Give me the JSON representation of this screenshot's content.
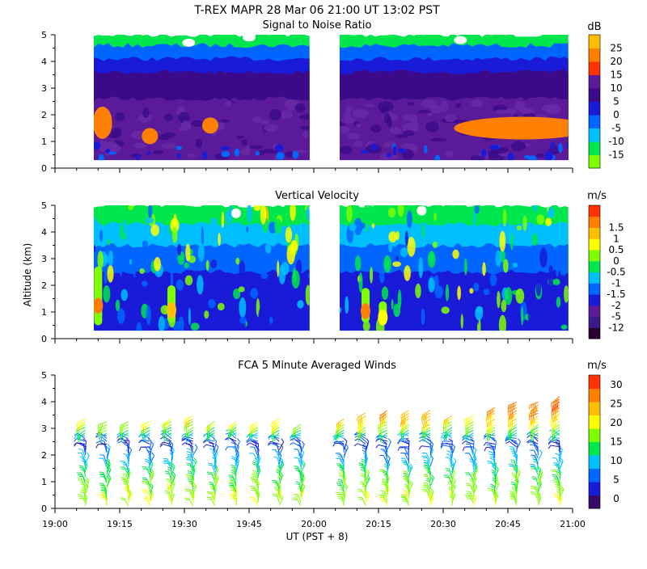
{
  "header": {
    "title": "T-REX   MAPR 28 Mar 06   21:00 UT   13:02   PST"
  },
  "axes": {
    "ylabel": "Altitude (km)",
    "xlabel": "UT  (PST + 8)",
    "y_ticks": [
      "0",
      "1",
      "2",
      "3",
      "4",
      "5"
    ],
    "x_ticks": [
      "19:00",
      "19:15",
      "19:30",
      "19:45",
      "20:00",
      "20:15",
      "20:30",
      "20:45",
      "21:00"
    ]
  },
  "panels": [
    {
      "title": "Signal to Noise Ratio",
      "unit": "dB",
      "colorbar": {
        "colors": [
          "#7fff00",
          "#00e64d",
          "#00bfff",
          "#0066ff",
          "#1a1ad9",
          "#3a0a8a",
          "#5a1a9a",
          "#ff3300",
          "#ff7f00",
          "#ffbf00"
        ],
        "labels": [
          "-15",
          "-10",
          "-5",
          "0",
          "5",
          "10",
          "15",
          "20",
          "25"
        ]
      }
    },
    {
      "title": "Vertical Velocity",
      "unit": "m/s",
      "colorbar": {
        "colors": [
          "#2a0030",
          "#3b1a8a",
          "#5a1a9a",
          "#1a1ad9",
          "#0066ff",
          "#00bfff",
          "#00e64d",
          "#7fff00",
          "#ffff00",
          "#ffbf00",
          "#ff7f00",
          "#ff3300"
        ],
        "labels": [
          "-12",
          "-5",
          "-2",
          "-1.5",
          "-1",
          "-0.5",
          "0",
          "0.5",
          "1",
          "1.5"
        ]
      }
    },
    {
      "title": "FCA 5 Minute Averaged Winds",
      "unit": "m/s",
      "colorbar": {
        "colors": [
          "#3a0a6a",
          "#1a1ad9",
          "#0066ff",
          "#00bfff",
          "#00e64d",
          "#7fff00",
          "#ffff00",
          "#ffbf00",
          "#ff7f00",
          "#ff3300"
        ],
        "labels": [
          "0",
          "5",
          "10",
          "15",
          "20",
          "25",
          "30"
        ]
      }
    }
  ],
  "chart_data": [
    {
      "type": "heatmap",
      "title": "Signal to Noise Ratio",
      "xlabel": "UT  (PST + 8)",
      "ylabel": "Altitude (km)",
      "xlim": [
        "19:00",
        "21:00"
      ],
      "ylim": [
        0,
        5
      ],
      "colorbar_unit": "dB",
      "colorbar_ticks": [
        -15,
        -10,
        -5,
        0,
        5,
        10,
        15,
        20,
        25
      ],
      "data_gaps": [
        [
          "19:00",
          "19:09"
        ],
        [
          "20:00",
          "20:06"
        ]
      ],
      "layers_km": [
        {
          "from": 0.3,
          "to": 2.6,
          "value_db": 10
        },
        {
          "from": 2.6,
          "to": 3.6,
          "value_db": 5
        },
        {
          "from": 3.6,
          "to": 4.1,
          "value_db": 0
        },
        {
          "from": 4.1,
          "to": 4.6,
          "value_db": -5
        },
        {
          "from": 4.6,
          "to": 5.0,
          "value_db": -12
        }
      ],
      "high_snr_patches": [
        {
          "time": "19:11",
          "alt_km": 1.7,
          "value_db": 20
        },
        {
          "time": "19:22",
          "alt_km": 1.2,
          "value_db": 20
        },
        {
          "time": "19:36",
          "alt_km": 1.6,
          "value_db": 20
        },
        {
          "time": "20:40",
          "alt_km": 1.5,
          "value_db": 20
        }
      ]
    },
    {
      "type": "heatmap",
      "title": "Vertical Velocity",
      "xlabel": "UT  (PST + 8)",
      "ylabel": "Altitude (km)",
      "xlim": [
        "19:00",
        "21:00"
      ],
      "ylim": [
        0,
        5
      ],
      "colorbar_unit": "m/s",
      "colorbar_ticks": [
        -12,
        -5,
        -2,
        -1.5,
        -1,
        -0.5,
        0,
        0.5,
        1,
        1.5
      ],
      "data_gaps": [
        [
          "19:00",
          "19:09"
        ],
        [
          "20:00",
          "20:06"
        ]
      ],
      "layers_km": [
        {
          "from": 0.3,
          "to": 2.5,
          "value_ms": -2
        },
        {
          "from": 2.5,
          "to": 3.5,
          "value_ms": -1.5
        },
        {
          "from": 3.5,
          "to": 4.3,
          "value_ms": -1
        },
        {
          "from": 4.3,
          "to": 5.0,
          "value_ms": -0.5
        }
      ],
      "updraft_columns": [
        {
          "time": "19:10",
          "alt_range_km": [
            0.5,
            2.7
          ],
          "peak_ms": 1.5
        },
        {
          "time": "19:27",
          "alt_range_km": [
            0.6,
            2.0
          ],
          "peak_ms": 1.0
        },
        {
          "time": "20:12",
          "alt_range_km": [
            0.6,
            1.9
          ],
          "peak_ms": 1.5
        },
        {
          "time": "20:16",
          "alt_range_km": [
            0.5,
            1.4
          ],
          "peak_ms": 0.5
        }
      ]
    },
    {
      "type": "scatter",
      "title": "FCA 5 Minute Averaged Winds",
      "xlabel": "UT  (PST + 8)",
      "ylabel": "Altitude (km)",
      "xlim": [
        "19:00",
        "21:00"
      ],
      "ylim": [
        0,
        5
      ],
      "colorbar_unit": "m/s",
      "colorbar_ticks": [
        0,
        5,
        10,
        15,
        20,
        25,
        30
      ],
      "barb_times": [
        "19:07",
        "19:12",
        "19:17",
        "19:22",
        "19:27",
        "19:32",
        "19:37",
        "19:42",
        "19:47",
        "19:52",
        "19:57",
        "20:07",
        "20:12",
        "20:17",
        "20:22",
        "20:27",
        "20:32",
        "20:37",
        "20:42",
        "20:47",
        "20:52",
        "20:57"
      ],
      "barb_top_km": [
        3.4,
        3.3,
        3.3,
        3.3,
        3.4,
        3.5,
        3.3,
        3.3,
        3.3,
        3.4,
        3.2,
        3.4,
        3.6,
        3.7,
        3.7,
        3.7,
        3.5,
        3.5,
        3.8,
        4.0,
        4.0,
        4.2
      ],
      "speed_profile": [
        {
          "alt_km": 0.1,
          "speed_ms": 20
        },
        {
          "alt_km": 1.0,
          "speed_ms": 17
        },
        {
          "alt_km": 1.8,
          "speed_ms": 10
        },
        {
          "alt_km": 2.4,
          "speed_ms": 5
        },
        {
          "alt_km": 3.0,
          "speed_ms": 17
        },
        {
          "alt_km": 3.5,
          "speed_ms": 25
        },
        {
          "alt_km": 4.0,
          "speed_ms": 30
        }
      ]
    }
  ]
}
